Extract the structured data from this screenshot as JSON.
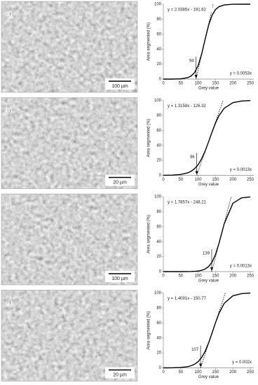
{
  "chart_data": [
    {
      "type": "line",
      "panel_label": "a)",
      "scale_bar": "100 µm",
      "xlabel": "Grey value",
      "ylabel": "Area segmented (%)",
      "x": [
        0,
        25,
        50,
        70,
        80,
        90,
        100,
        110,
        120,
        130,
        140,
        150,
        160,
        175,
        200,
        225,
        250
      ],
      "series": [
        {
          "color": "#000000",
          "values": [
            0,
            0,
            0.4,
            1.9,
            4.2,
            8.9,
            18.1,
            33.3,
            53.0,
            71.8,
            85.2,
            92.9,
            96.7,
            99.0,
            99.9,
            100,
            100
          ]
        },
        {
          "color": "#000000",
          "dash": true,
          "x": [
            94,
            143.1
          ],
          "values": [
            0,
            100
          ]
        }
      ],
      "xlim": [
        0,
        260
      ],
      "ylim": [
        0,
        100
      ],
      "xticks": [
        0,
        50,
        100,
        150,
        200,
        250
      ],
      "yticks": [
        0,
        20,
        40,
        60,
        80,
        100
      ],
      "fit_label": "y = 2.0385x - 191.62",
      "threshold": 94,
      "baseline_label": "y = 0.0053x"
    },
    {
      "type": "line",
      "panel_label": "b)",
      "scale_bar": "20 µm",
      "xlabel": "Grey value",
      "ylabel": "Area segmented (%)",
      "x": [
        0,
        25,
        50,
        70,
        80,
        90,
        100,
        110,
        120,
        130,
        140,
        150,
        160,
        175,
        200,
        225,
        250
      ],
      "series": [
        {
          "color": "#000000",
          "values": [
            0.1,
            0.3,
            1.2,
            3.3,
            5.5,
            9.0,
            14.3,
            22.1,
            32.4,
            44.8,
            57.8,
            69.9,
            79.7,
            89.6,
            97.0,
            99.2,
            99.8
          ]
        },
        {
          "color": "#000000",
          "dash": true,
          "x": [
            96,
            172
          ],
          "values": [
            0,
            100
          ]
        }
      ],
      "xlim": [
        0,
        260
      ],
      "ylim": [
        0,
        100
      ],
      "xticks": [
        0,
        50,
        100,
        150,
        200,
        250
      ],
      "yticks": [
        0,
        20,
        40,
        60,
        80,
        100
      ],
      "fit_label": "y = 1.3158x - 126.32",
      "threshold": 96,
      "baseline_label": "y = 0.0013x"
    },
    {
      "type": "line",
      "panel_label": "c)",
      "scale_bar": "100 µm",
      "xlabel": "Grey value",
      "ylabel": "Area segmented (%)",
      "x": [
        0,
        25,
        50,
        70,
        80,
        90,
        100,
        110,
        120,
        130,
        140,
        150,
        160,
        175,
        200,
        225,
        250
      ],
      "series": [
        {
          "color": "#000000",
          "values": [
            0,
            0,
            0,
            0.1,
            0.2,
            0.4,
            0.8,
            1.7,
            3.4,
            6.7,
            12.7,
            22.9,
            37.8,
            63.9,
            91.3,
            98.4,
            99.7
          ]
        },
        {
          "color": "#000000",
          "dash": true,
          "x": [
            139,
            195
          ],
          "values": [
            0,
            100
          ]
        }
      ],
      "xlim": [
        0,
        260
      ],
      "ylim": [
        0,
        100
      ],
      "xticks": [
        0,
        50,
        100,
        150,
        200,
        250
      ],
      "yticks": [
        0,
        20,
        40,
        60,
        80,
        100
      ],
      "fit_label": "y = 1.7857x - 248.21",
      "threshold": 139,
      "baseline_label": "y = 0.0013x"
    },
    {
      "type": "line",
      "panel_label": "d)",
      "scale_bar": "20 µm",
      "xlabel": "Grey value",
      "ylabel": "Area segmented (%)",
      "x": [
        0,
        25,
        50,
        70,
        80,
        90,
        100,
        110,
        120,
        130,
        140,
        150,
        160,
        175,
        200,
        225,
        250
      ],
      "series": [
        {
          "color": "#000000",
          "values": [
            0,
            0.1,
            0.5,
            1.6,
            2.9,
            4.9,
            8.3,
            13.8,
            21.9,
            33.1,
            46.5,
            60.4,
            72.8,
            86.2,
            96.2,
            99.1,
            99.8
          ]
        },
        {
          "color": "#000000",
          "dash": true,
          "x": [
            107,
            178
          ],
          "values": [
            0,
            100
          ]
        }
      ],
      "xlim": [
        0,
        260
      ],
      "ylim": [
        0,
        100
      ],
      "xticks": [
        0,
        50,
        100,
        150,
        200,
        250
      ],
      "yticks": [
        0,
        20,
        40,
        60,
        80,
        100
      ],
      "fit_label": "y = 1.4091x - 150.77",
      "threshold": 107,
      "baseline_label": "y = 0.002x"
    }
  ]
}
